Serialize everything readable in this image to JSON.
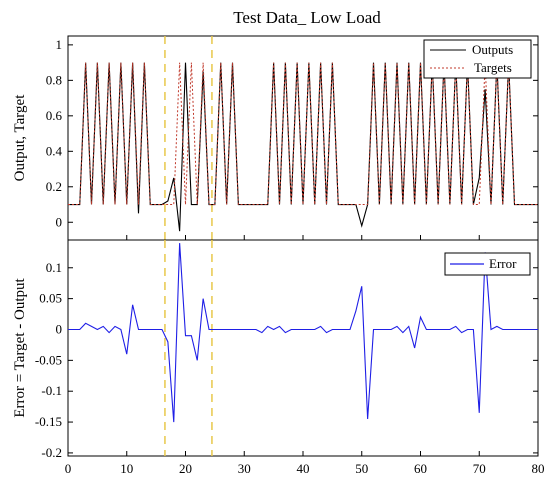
{
  "title": "Test Data_  Low Load",
  "colors": {
    "outputs": "#000000",
    "targets": "#c0392b",
    "error": "#1f1fe6",
    "marker": "#e8c84a",
    "axis": "#000000"
  },
  "chart_data": [
    {
      "type": "line",
      "title": "Test Data_  Low Load",
      "xlabel": "",
      "ylabel": "Output, Target",
      "xlim": [
        0,
        80
      ],
      "ylim": [
        -0.1,
        1.05
      ],
      "xticks": [],
      "yticks": [
        0,
        0.2,
        0.4,
        0.6,
        0.8,
        1
      ],
      "ytick_labels": [
        "0",
        "0.2",
        "0.4",
        "0.6",
        "0.8",
        "1"
      ],
      "grid": false,
      "legend": "top-right",
      "markers_x": [
        16.5,
        24.5
      ],
      "series": [
        {
          "name": "Outputs",
          "style": "solid",
          "x": [
            0,
            1,
            2,
            3,
            4,
            5,
            6,
            7,
            8,
            9,
            10,
            11,
            12,
            13,
            14,
            15,
            16,
            17,
            18,
            19,
            20,
            21,
            22,
            23,
            24,
            25,
            26,
            27,
            28,
            29,
            30,
            31,
            32,
            33,
            34,
            35,
            36,
            37,
            38,
            39,
            40,
            41,
            42,
            43,
            44,
            45,
            46,
            47,
            48,
            49,
            50,
            51,
            52,
            53,
            54,
            55,
            56,
            57,
            58,
            59,
            60,
            61,
            62,
            63,
            64,
            65,
            66,
            67,
            68,
            69,
            70,
            71,
            72,
            73,
            74,
            75,
            76,
            77,
            78,
            79,
            80
          ],
          "values": [
            0.1,
            0.1,
            0.1,
            0.9,
            0.1,
            0.9,
            0.1,
            0.9,
            0.1,
            0.9,
            0.1,
            0.9,
            0.05,
            0.9,
            0.1,
            0.1,
            0.1,
            0.12,
            0.25,
            -0.05,
            0.9,
            0.1,
            0.1,
            0.85,
            0.1,
            0.1,
            0.9,
            0.1,
            0.9,
            0.1,
            0.1,
            0.1,
            0.1,
            0.1,
            0.1,
            0.9,
            0.1,
            0.9,
            0.1,
            0.9,
            0.1,
            0.9,
            0.1,
            0.9,
            0.1,
            0.9,
            0.1,
            0.1,
            0.1,
            0.1,
            -0.02,
            0.1,
            0.9,
            0.1,
            0.9,
            0.1,
            0.9,
            0.1,
            0.9,
            0.1,
            0.9,
            0.1,
            0.9,
            0.1,
            0.9,
            0.1,
            0.9,
            0.1,
            0.9,
            0.1,
            0.25,
            0.75,
            0.1,
            0.9,
            0.1,
            0.9,
            0.1,
            0.1,
            0.1,
            0.1,
            0.1
          ]
        },
        {
          "name": "Targets",
          "style": "dotted",
          "x": [
            0,
            1,
            2,
            3,
            4,
            5,
            6,
            7,
            8,
            9,
            10,
            11,
            12,
            13,
            14,
            15,
            16,
            17,
            18,
            19,
            20,
            21,
            22,
            23,
            24,
            25,
            26,
            27,
            28,
            29,
            30,
            31,
            32,
            33,
            34,
            35,
            36,
            37,
            38,
            39,
            40,
            41,
            42,
            43,
            44,
            45,
            46,
            47,
            48,
            49,
            50,
            51,
            52,
            53,
            54,
            55,
            56,
            57,
            58,
            59,
            60,
            61,
            62,
            63,
            64,
            65,
            66,
            67,
            68,
            69,
            70,
            71,
            72,
            73,
            74,
            75,
            76,
            77,
            78,
            79,
            80
          ],
          "values": [
            0.1,
            0.1,
            0.1,
            0.9,
            0.1,
            0.9,
            0.1,
            0.9,
            0.1,
            0.9,
            0.1,
            0.9,
            0.1,
            0.9,
            0.1,
            0.1,
            0.1,
            0.1,
            0.1,
            0.9,
            0.1,
            0.9,
            0.1,
            0.9,
            0.1,
            0.1,
            0.9,
            0.1,
            0.9,
            0.1,
            0.1,
            0.1,
            0.1,
            0.1,
            0.1,
            0.9,
            0.1,
            0.9,
            0.1,
            0.9,
            0.1,
            0.9,
            0.1,
            0.9,
            0.1,
            0.9,
            0.1,
            0.1,
            0.1,
            0.1,
            0.1,
            0.1,
            0.9,
            0.1,
            0.9,
            0.1,
            0.9,
            0.1,
            0.9,
            0.1,
            0.9,
            0.1,
            0.9,
            0.1,
            0.9,
            0.1,
            0.9,
            0.1,
            0.9,
            0.1,
            0.1,
            0.9,
            0.1,
            0.9,
            0.1,
            0.9,
            0.1,
            0.1,
            0.1,
            0.1,
            0.1
          ]
        }
      ]
    },
    {
      "type": "line",
      "title": "",
      "xlabel": "",
      "ylabel": "Error = Target - Output",
      "xlim": [
        0,
        80
      ],
      "ylim": [
        -0.205,
        0.145
      ],
      "xticks": [
        0,
        10,
        20,
        30,
        40,
        50,
        60,
        70,
        80
      ],
      "xtick_labels": [
        "0",
        "10",
        "20",
        "30",
        "40",
        "50",
        "60",
        "70",
        "80"
      ],
      "yticks": [
        0.1,
        0.05,
        0,
        -0.05,
        -0.1,
        -0.15,
        -0.2
      ],
      "ytick_labels": [
        "0.1",
        "0.05",
        "0",
        "-0.05",
        "-0.1",
        "-0.15",
        "-0.2"
      ],
      "grid": false,
      "legend": "top-right",
      "markers_x": [
        16.5,
        24.5
      ],
      "series": [
        {
          "name": "Error",
          "style": "solid",
          "x": [
            0,
            1,
            2,
            3,
            4,
            5,
            6,
            7,
            8,
            9,
            10,
            11,
            12,
            13,
            14,
            15,
            16,
            17,
            18,
            19,
            20,
            21,
            22,
            23,
            24,
            25,
            26,
            27,
            28,
            29,
            30,
            31,
            32,
            33,
            34,
            35,
            36,
            37,
            38,
            39,
            40,
            41,
            42,
            43,
            44,
            45,
            46,
            47,
            48,
            49,
            50,
            51,
            52,
            53,
            54,
            55,
            56,
            57,
            58,
            59,
            60,
            61,
            62,
            63,
            64,
            65,
            66,
            67,
            68,
            69,
            70,
            71,
            72,
            73,
            74,
            75,
            76,
            77,
            78,
            79,
            80
          ],
          "values": [
            0,
            0,
            0,
            0.01,
            0.005,
            0,
            0.005,
            -0.005,
            0.005,
            0,
            -0.04,
            0.04,
            0,
            0,
            0,
            0,
            0,
            -0.02,
            -0.15,
            0.14,
            -0.01,
            -0.01,
            -0.05,
            0.05,
            0,
            0,
            0,
            0,
            0,
            0,
            0,
            0,
            0,
            -0.005,
            0.005,
            0,
            0.005,
            -0.005,
            0,
            0,
            0,
            0,
            0,
            0.005,
            -0.005,
            0,
            0,
            0,
            0,
            0.03,
            0.07,
            -0.145,
            0,
            0,
            0,
            0,
            0.005,
            -0.005,
            0.005,
            -0.03,
            0.02,
            0,
            0,
            0,
            0,
            0,
            0.005,
            -0.005,
            0,
            0,
            -0.135,
            0.125,
            0,
            0.005,
            0,
            0,
            0,
            0,
            0,
            0,
            0
          ]
        }
      ]
    }
  ]
}
